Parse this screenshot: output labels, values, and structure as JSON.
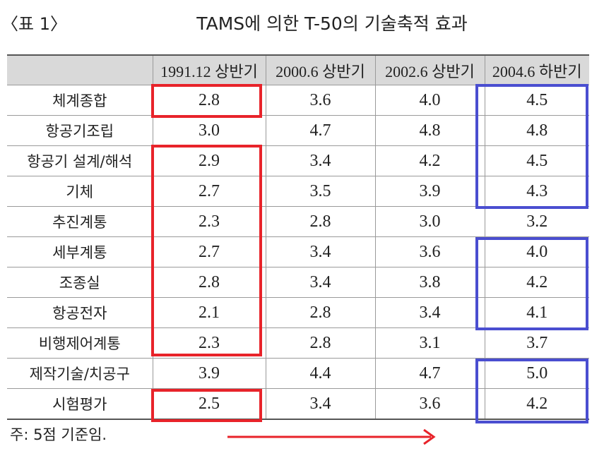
{
  "title_prefix": "〈표 1〉",
  "title": "TAMS에 의한 T-50의 기술축적 효과",
  "note": "주: 5점 기준임.",
  "colors": {
    "red_box": "#e8232a",
    "blue_box": "#4a4ed0",
    "header_bg": "#d9d9d9"
  },
  "chart_data": {
    "type": "table",
    "title": "TAMS에 의한 T-50의 기술축적 효과",
    "columns": [
      "1991.12 상반기",
      "2000.6 상반기",
      "2002.6 상반기",
      "2004.6 하반기"
    ],
    "rows": [
      {
        "label": "체계종합",
        "values": [
          "2.8",
          "3.6",
          "4.0",
          "4.5"
        ]
      },
      {
        "label": "항공기조립",
        "values": [
          "3.0",
          "4.7",
          "4.8",
          "4.8"
        ]
      },
      {
        "label": "항공기 설계/해석",
        "values": [
          "2.9",
          "3.4",
          "4.2",
          "4.5"
        ]
      },
      {
        "label": "기체",
        "values": [
          "2.7",
          "3.5",
          "3.9",
          "4.3"
        ]
      },
      {
        "label": "추진계통",
        "values": [
          "2.3",
          "2.8",
          "3.0",
          "3.2"
        ]
      },
      {
        "label": "세부계통",
        "values": [
          "2.7",
          "3.4",
          "3.6",
          "4.0"
        ]
      },
      {
        "label": "조종실",
        "values": [
          "2.8",
          "3.4",
          "3.8",
          "4.2"
        ]
      },
      {
        "label": "항공전자",
        "values": [
          "2.1",
          "2.8",
          "3.4",
          "4.1"
        ]
      },
      {
        "label": "비행제어계통",
        "values": [
          "2.3",
          "2.8",
          "3.1",
          "3.7"
        ]
      },
      {
        "label": "제작기술/치공구",
        "values": [
          "3.9",
          "4.4",
          "4.7",
          "5.0"
        ]
      },
      {
        "label": "시험평가",
        "values": [
          "2.5",
          "3.4",
          "3.6",
          "4.2"
        ]
      }
    ]
  }
}
